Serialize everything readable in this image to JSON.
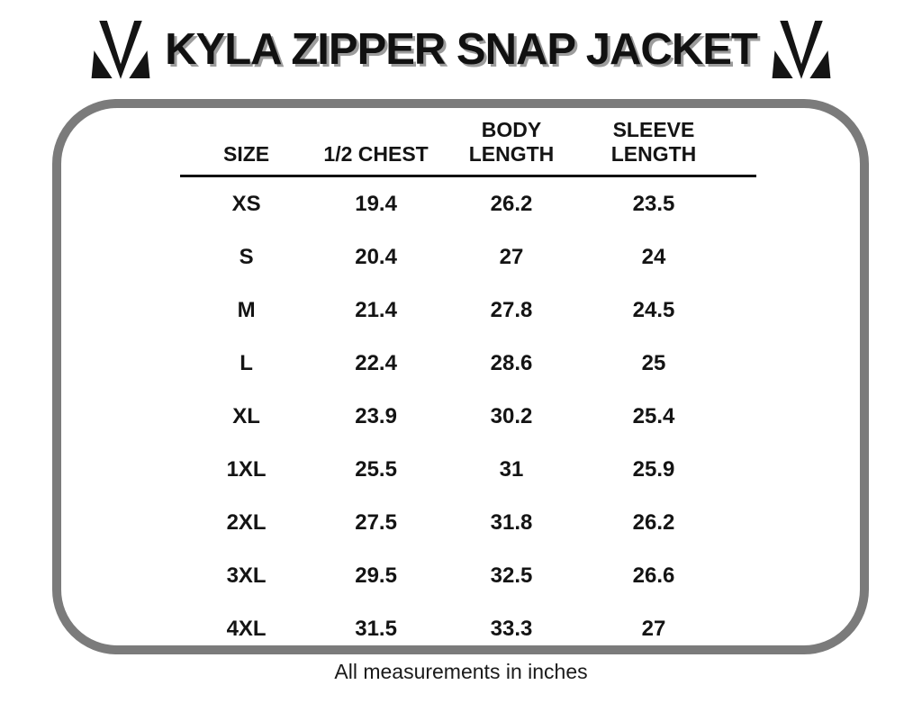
{
  "title": "KYLA ZIPPER SNAP JACKET",
  "logo": {
    "name": "brand-monogram",
    "color": "#141414"
  },
  "footer_note": "All measurements in inches",
  "colors": {
    "panel_border": "#7b7b7b",
    "text": "#141414",
    "title_shadow": "#9c9c9c",
    "divider": "#111111"
  },
  "chart_data": {
    "type": "table",
    "title": "KYLA ZIPPER SNAP JACKET",
    "units": "inches",
    "columns": [
      "SIZE",
      "1/2 CHEST",
      "BODY\nLENGTH",
      "SLEEVE\nLENGTH"
    ],
    "rows": [
      [
        "XS",
        "19.4",
        "26.2",
        "23.5"
      ],
      [
        "S",
        "20.4",
        "27",
        "24"
      ],
      [
        "M",
        "21.4",
        "27.8",
        "24.5"
      ],
      [
        "L",
        "22.4",
        "28.6",
        "25"
      ],
      [
        "XL",
        "23.9",
        "30.2",
        "25.4"
      ],
      [
        "1XL",
        "25.5",
        "31",
        "25.9"
      ],
      [
        "2XL",
        "27.5",
        "31.8",
        "26.2"
      ],
      [
        "3XL",
        "29.5",
        "32.5",
        "26.6"
      ],
      [
        "4XL",
        "31.5",
        "33.3",
        "27"
      ]
    ]
  }
}
